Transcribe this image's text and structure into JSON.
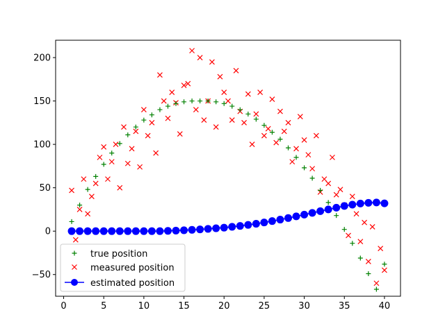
{
  "chart_data": {
    "type": "scatter",
    "title": "",
    "xlabel": "",
    "ylabel": "",
    "xlim": [
      -1.0,
      42.0
    ],
    "ylim": [
      -75,
      220
    ],
    "x_ticks": [
      0,
      5,
      10,
      15,
      20,
      25,
      30,
      35,
      40
    ],
    "y_ticks": [
      -50,
      0,
      50,
      100,
      150,
      200
    ],
    "grid": false,
    "legend_placement": "lower-left",
    "series": [
      {
        "name": "true position",
        "marker": "plus",
        "color": "#008000",
        "x": [
          1,
          2,
          3,
          4,
          5,
          6,
          7,
          8,
          9,
          10,
          11,
          12,
          13,
          14,
          15,
          16,
          17,
          18,
          19,
          20,
          21,
          22,
          23,
          24,
          25,
          26,
          27,
          28,
          29,
          30,
          31,
          32,
          33,
          34,
          35,
          36,
          37,
          38,
          39,
          40
        ],
        "y": [
          11,
          30,
          48,
          63,
          77,
          90,
          101,
          111,
          120,
          128,
          134,
          140,
          144,
          147,
          149,
          150,
          150,
          150,
          149,
          147,
          144,
          140,
          135,
          129,
          122,
          114,
          106,
          96,
          85,
          73,
          61,
          47,
          33,
          18,
          2,
          -14,
          -31,
          -49,
          -67,
          -38
        ]
      },
      {
        "name": "measured position",
        "marker": "x",
        "color": "#ff0000",
        "x": [
          1,
          1.5,
          2,
          2.5,
          3,
          3.5,
          4,
          4.5,
          5,
          5.5,
          6,
          6.5,
          7,
          7.5,
          8,
          8.5,
          9,
          9.5,
          10,
          10.5,
          11,
          11.5,
          12,
          12.5,
          13,
          13.5,
          14,
          14.5,
          15,
          15.5,
          16,
          16.5,
          17,
          17.5,
          18,
          18.5,
          19,
          19.5,
          20,
          20.5,
          21,
          21.5,
          22,
          22.5,
          23,
          23.5,
          24,
          24.5,
          25,
          25.5,
          26,
          26.5,
          27,
          27.5,
          28,
          28.5,
          29,
          29.5,
          30,
          30.5,
          31,
          31.5,
          32,
          32.5,
          33,
          33.5,
          34,
          34.5,
          35,
          35.5,
          36,
          36.5,
          37,
          37.5,
          38,
          38.5,
          39,
          39.5,
          40
        ],
        "y": [
          47,
          -10,
          25,
          60,
          20,
          40,
          55,
          85,
          97,
          60,
          80,
          100,
          50,
          120,
          78,
          95,
          115,
          74,
          140,
          110,
          125,
          90,
          180,
          150,
          130,
          160,
          148,
          112,
          168,
          170,
          208,
          140,
          200,
          128,
          150,
          195,
          120,
          178,
          160,
          150,
          128,
          185,
          138,
          125,
          158,
          100,
          135,
          160,
          110,
          118,
          152,
          102,
          138,
          115,
          125,
          80,
          95,
          132,
          105,
          88,
          72,
          110,
          45,
          60,
          55,
          85,
          42,
          48,
          30,
          -5,
          40,
          20,
          -12,
          10,
          -35,
          5,
          -60,
          -20,
          -45
        ]
      },
      {
        "name": "estimated position",
        "marker": "circle-line",
        "color": "#0000ff",
        "x": [
          1,
          2,
          3,
          4,
          5,
          6,
          7,
          8,
          9,
          10,
          11,
          12,
          13,
          14,
          15,
          16,
          17,
          18,
          19,
          20,
          21,
          22,
          23,
          24,
          25,
          26,
          27,
          28,
          29,
          30,
          31,
          32,
          33,
          34,
          35,
          36,
          37,
          38,
          39,
          40
        ],
        "y": [
          0,
          0,
          0,
          0,
          0,
          0,
          0,
          0,
          0,
          0,
          0,
          0,
          0.3,
          0.6,
          1,
          1.5,
          2,
          2.6,
          3.3,
          4,
          5,
          6,
          7.2,
          8.5,
          10,
          11.6,
          13.3,
          15.1,
          17,
          19,
          21,
          23,
          25,
          27,
          29,
          30.5,
          31.8,
          32.6,
          33,
          32
        ]
      }
    ]
  }
}
